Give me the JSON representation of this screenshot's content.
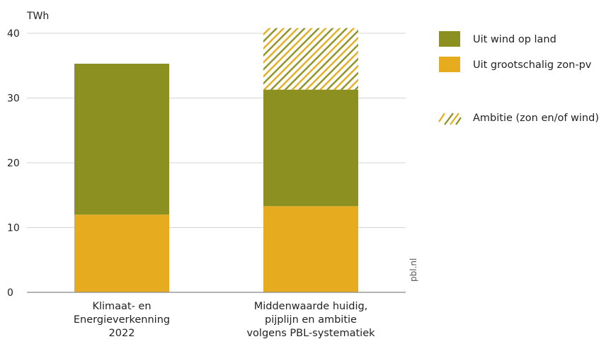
{
  "chart_data": {
    "type": "bar",
    "stacked": true,
    "unit": "TWh",
    "ylim": [
      0,
      40
    ],
    "yticks": [
      0,
      10,
      20,
      30,
      40
    ],
    "grid": true,
    "legend_position": "right",
    "categories": [
      [
        "Klimaat- en",
        "Energieverkenning",
        "2022"
      ],
      [
        "Middenwaarde huidig,",
        "pijplijn en ambitie",
        "volgens PBL-systematiek"
      ]
    ],
    "series": [
      {
        "name": "Uit grootschalig zon-pv",
        "color": "#e6ab1e",
        "values": [
          12,
          13.3
        ]
      },
      {
        "name": "Uit wind op land",
        "color": "#8c9020",
        "values": [
          23.3,
          18
        ]
      },
      {
        "name": "Ambitie (zon en/of wind)",
        "pattern": "hatch",
        "values": [
          0,
          9.5
        ]
      }
    ],
    "legend_order": [
      1,
      0,
      2
    ],
    "source": "pbl.nl"
  }
}
